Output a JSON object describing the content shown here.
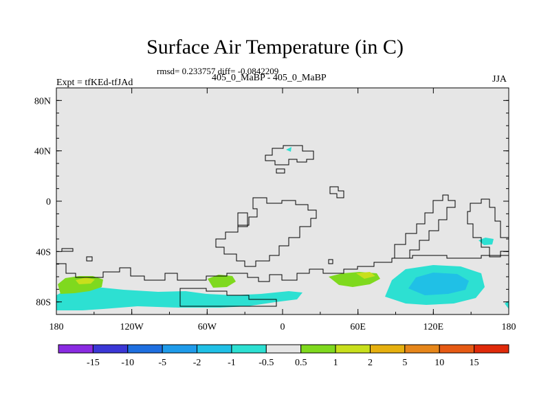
{
  "title": "Surface Air Temperature (in C)",
  "stats_line": "rmsd= 0.233757 diff= -0.0842209",
  "experiment_label": "Expt = tfKEd-tfJAd",
  "case_label": "405_0_MaBP - 405_0_MaBP",
  "season_label": "JJA",
  "map": {
    "type": "filled-contour",
    "variable": "surface air temperature difference",
    "units": "C",
    "lon_ticks": [
      "180",
      "120W",
      "60W",
      "0",
      "60E",
      "120E",
      "180"
    ],
    "lat_ticks": [
      "80N",
      "40N",
      "0",
      "40S",
      "80S"
    ],
    "background_color": "#e6e6e6"
  },
  "colorbar": {
    "labels": [
      "-15",
      "-10",
      "-5",
      "-2",
      "-1",
      "-0.5",
      "0.5",
      "1",
      "2",
      "5",
      "10",
      "15"
    ],
    "colors": [
      "#8a2be2",
      "#3b37d6",
      "#1e6fe0",
      "#1f9bea",
      "#20c0e6",
      "#2de0d2",
      "#e6e6e6",
      "#7fd91e",
      "#c8df1c",
      "#e6b00f",
      "#e6861a",
      "#e65a14",
      "#e02a0a"
    ]
  }
}
